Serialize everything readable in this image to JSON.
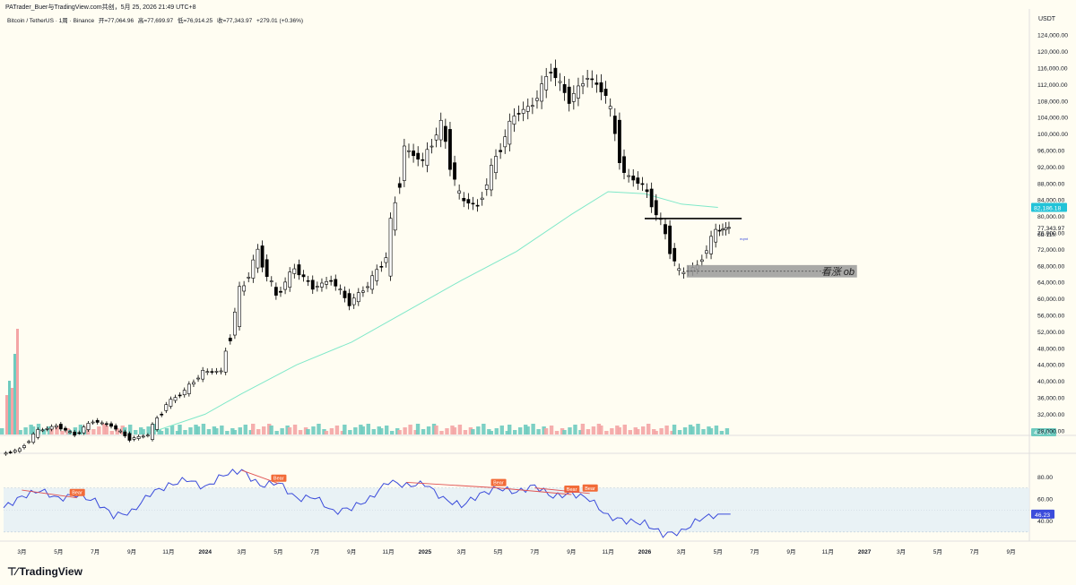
{
  "attribution": "PATrader_Buer与TradingView.com共创，5月 25, 2026 21:49 UTC+8",
  "symbol_info": {
    "name": "Bitcoin / TetherUS · 1周 · Binance",
    "open": "开=77,064.96",
    "high": "高=77,699.97",
    "low": "低=76,914.25",
    "close": "收=77,343.97",
    "change": "+279.01 (+0.36%)"
  },
  "currency": "USDT",
  "logo_text": "TradingView",
  "colors": {
    "up": "#ffffff",
    "down": "#000000",
    "ema": "#7fe8c9",
    "volume_up": "#6ecbbf",
    "volume_down": "#f4a5a5",
    "rsi_line": "#3b4cdb",
    "rsi_band": "#e3eff5",
    "bear_label": "#f26b38",
    "bear_line": "#e05252",
    "price_badge_ema": "#22c3d8",
    "rsi_badge": "#3b4cdb",
    "ob_box": "#9a9a9a"
  },
  "chart_data": {
    "type": "candlestick",
    "title": "",
    "y_axis": {
      "ticks": [
        28000,
        32000,
        36000,
        40000,
        44000,
        48000,
        52000,
        56000,
        60000,
        64000,
        68000,
        72000,
        76000,
        80000,
        84000,
        88000,
        92000,
        96000,
        100000,
        104000,
        108000,
        112000,
        116000,
        120000,
        124000
      ],
      "tick_labels": [
        "28,000.00",
        "32,000.00",
        "36,000.00",
        "40,000.00",
        "44,000.00",
        "48,000.00",
        "52,000.00",
        "56,000.00",
        "60,000.00",
        "64,000.00",
        "68,000.00",
        "72,000.00",
        "76,000.00",
        "80,000.00",
        "84,000.00",
        "88,000.00",
        "92,000.00",
        "96,000.00",
        "100,000.00",
        "104,000.00",
        "108,000.00",
        "112,000.00",
        "116,000.00",
        "120,000.00",
        "124,000.00"
      ],
      "range": [
        26000,
        126000
      ]
    },
    "x_axis": {
      "tick_labels": [
        "3月",
        "5月",
        "7月",
        "9月",
        "11月",
        "2024",
        "3月",
        "5月",
        "7月",
        "9月",
        "11月",
        "2025",
        "3月",
        "5月",
        "7月",
        "9月",
        "11月",
        "2026",
        "3月",
        "5月",
        "7月",
        "9月",
        "11月",
        "2027",
        "3月",
        "5月",
        "7月",
        "9月"
      ],
      "tick_dates": [
        "2023-03",
        "2023-05",
        "2023-07",
        "2023-09",
        "2023-11",
        "2024-01",
        "2024-03",
        "2024-05",
        "2024-07",
        "2024-09",
        "2024-11",
        "2025-01",
        "2025-03",
        "2025-05",
        "2025-07",
        "2025-09",
        "2025-11",
        "2026-01",
        "2026-03",
        "2026-05",
        "2026-07",
        "2026-09",
        "2026-11",
        "2027-01",
        "2027-03",
        "2027-05",
        "2027-07",
        "2027-09"
      ],
      "range": [
        "2023-02",
        "2027-10"
      ]
    },
    "price_close_series": [
      [
        "2023-02",
        23500
      ],
      [
        "2023-03",
        28000
      ],
      [
        "2023-04",
        29200
      ],
      [
        "2023-05",
        27000
      ],
      [
        "2023-06",
        30400
      ],
      [
        "2023-07",
        29200
      ],
      [
        "2023-08",
        26000
      ],
      [
        "2023-09",
        27000
      ],
      [
        "2023-10",
        34500
      ],
      [
        "2023-11",
        37700
      ],
      [
        "2023-12",
        42300
      ],
      [
        "2024-01",
        42500
      ],
      [
        "2024-02",
        61100
      ],
      [
        "2024-03",
        71300
      ],
      [
        "2024-04",
        60600
      ],
      [
        "2024-05",
        67500
      ],
      [
        "2024-06",
        62700
      ],
      [
        "2024-07",
        64600
      ],
      [
        "2024-08",
        58900
      ],
      [
        "2024-09",
        63300
      ],
      [
        "2024-10",
        70200
      ],
      [
        "2024-11",
        96400
      ],
      [
        "2024-12",
        93400
      ],
      [
        "2025-01",
        102400
      ],
      [
        "2025-02",
        84300
      ],
      [
        "2025-03",
        82500
      ],
      [
        "2025-04",
        94200
      ],
      [
        "2025-05",
        104600
      ],
      [
        "2025-06",
        107100
      ],
      [
        "2025-07",
        115700
      ],
      [
        "2025-08",
        108200
      ],
      [
        "2025-09",
        114000
      ],
      [
        "2025-10",
        109500
      ],
      [
        "2025-11",
        90300
      ],
      [
        "2025-12",
        87600
      ],
      [
        "2026-01",
        78600
      ],
      [
        "2026-02",
        66000
      ],
      [
        "2026-03",
        68000
      ],
      [
        "2026-04",
        76500
      ],
      [
        "2026-05",
        77344
      ]
    ],
    "ema_series": [
      [
        "2023-10",
        27500
      ],
      [
        "2024-01",
        32000
      ],
      [
        "2024-03",
        37000
      ],
      [
        "2024-06",
        44000
      ],
      [
        "2024-09",
        49500
      ],
      [
        "2024-12",
        57000
      ],
      [
        "2025-03",
        64500
      ],
      [
        "2025-06",
        71500
      ],
      [
        "2025-09",
        80500
      ],
      [
        "2025-11",
        86000
      ],
      [
        "2026-01",
        85500
      ],
      [
        "2026-03",
        83000
      ],
      [
        "2026-05",
        82186
      ]
    ],
    "price_badges": [
      {
        "label": "82,186.18",
        "value": 82186,
        "kind": "ema"
      },
      {
        "label": "77,343.97",
        "value": 77344,
        "kind": "last"
      },
      {
        "label": "6d 11h",
        "value": 75800,
        "kind": "countdown"
      }
    ],
    "annotations": [
      {
        "type": "hline",
        "from": "2026-01",
        "to": "2026-06",
        "value": 79500,
        "color": "#000000"
      },
      {
        "type": "box",
        "label": "看涨 ob",
        "from": "2026-03",
        "to": "2026-12",
        "low": 65200,
        "high": 68200
      },
      {
        "type": "text",
        "label": "eqmt",
        "x": "2026-06",
        "value": 74700
      }
    ],
    "volume": {
      "label": "4.37 K",
      "note": "volume histogram"
    },
    "rsi": {
      "y_ticks": [
        40,
        60,
        80
      ],
      "tick_labels": [
        "40.00",
        "60.00",
        "80.00"
      ],
      "band": [
        30,
        70
      ],
      "range": [
        25,
        90
      ],
      "current": {
        "label": "46.23",
        "value": 46.23
      },
      "series": [
        [
          "2023-02",
          52
        ],
        [
          "2023-03",
          62
        ],
        [
          "2023-04",
          68
        ],
        [
          "2023-05",
          60
        ],
        [
          "2023-06",
          64
        ],
        [
          "2023-07",
          58
        ],
        [
          "2023-08",
          45
        ],
        [
          "2023-09",
          48
        ],
        [
          "2023-10",
          65
        ],
        [
          "2023-11",
          72
        ],
        [
          "2023-12",
          78
        ],
        [
          "2024-01",
          70
        ],
        [
          "2024-02",
          82
        ],
        [
          "2024-03",
          86
        ],
        [
          "2024-04",
          72
        ],
        [
          "2024-05",
          75
        ],
        [
          "2024-06",
          60
        ],
        [
          "2024-07",
          62
        ],
        [
          "2024-08",
          48
        ],
        [
          "2024-09",
          52
        ],
        [
          "2024-10",
          60
        ],
        [
          "2024-11",
          76
        ],
        [
          "2024-12",
          72
        ],
        [
          "2025-01",
          74
        ],
        [
          "2025-02",
          60
        ],
        [
          "2025-03",
          54
        ],
        [
          "2025-04",
          64
        ],
        [
          "2025-05",
          70
        ],
        [
          "2025-06",
          66
        ],
        [
          "2025-07",
          72
        ],
        [
          "2025-08",
          62
        ],
        [
          "2025-09",
          65
        ],
        [
          "2025-10",
          60
        ],
        [
          "2025-11",
          44
        ],
        [
          "2025-12",
          40
        ],
        [
          "2026-01",
          38
        ],
        [
          "2026-02",
          28
        ],
        [
          "2026-03",
          30
        ],
        [
          "2026-04",
          42
        ],
        [
          "2026-05",
          46.23
        ]
      ],
      "bear_divergences": [
        {
          "label": "Bear",
          "x1": "2023-03",
          "y1": 68,
          "x2": "2023-06",
          "y2": 61
        },
        {
          "label": "Bear",
          "x1": "2024-03",
          "y1": 86,
          "x2": "2024-05",
          "y2": 74
        },
        {
          "label": "Bear",
          "x1": "2024-12",
          "y1": 75,
          "x2": "2025-05",
          "y2": 70
        },
        {
          "label": "Bear",
          "x1": "2025-05",
          "y1": 70,
          "x2": "2025-09",
          "y2": 64
        },
        {
          "label": "Bear",
          "x1": "2025-07",
          "y1": 70,
          "x2": "2025-10",
          "y2": 65
        }
      ]
    }
  }
}
